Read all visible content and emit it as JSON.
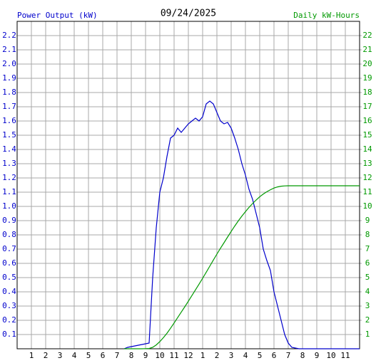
{
  "chart_data": {
    "type": "line",
    "title": "09/24/2025",
    "y_label": "Power Output (kW)",
    "y2_label": "Daily kW-Hours",
    "grid": true,
    "xlim": [
      0,
      24
    ],
    "xticks": [
      1,
      2,
      3,
      4,
      5,
      6,
      7,
      8,
      9,
      10,
      11,
      12,
      {
        "value": 13,
        "label": "1"
      },
      {
        "value": 14,
        "label": "2"
      },
      {
        "value": 15,
        "label": "3"
      },
      {
        "value": 16,
        "label": "4"
      },
      {
        "value": 17,
        "label": "5"
      },
      {
        "value": 18,
        "label": "6"
      },
      {
        "value": 19,
        "label": "7"
      },
      {
        "value": 20,
        "label": "8"
      },
      {
        "value": 21,
        "label": "9"
      },
      {
        "value": 22,
        "label": "10"
      },
      {
        "value": 23,
        "label": "11"
      }
    ],
    "ylim": [
      0,
      2.3
    ],
    "yticks": [
      0.1,
      0.2,
      0.3,
      0.4,
      0.5,
      0.6,
      0.7,
      0.8,
      0.9,
      {
        "value": 1,
        "label": "1.0"
      },
      1.1,
      1.2,
      1.3,
      1.4,
      1.5,
      1.6,
      1.7,
      1.8,
      1.9,
      {
        "value": 2,
        "label": "2.0"
      },
      2.1,
      2.2
    ],
    "y2lim": [
      0,
      23
    ],
    "y2ticks": [
      1,
      2,
      3,
      4,
      5,
      6,
      7,
      8,
      9,
      10,
      11,
      12,
      13,
      14,
      15,
      16,
      17,
      18,
      19,
      20,
      21,
      22
    ],
    "x": [
      7.5,
      7.75,
      8,
      8.25,
      8.5,
      8.75,
      9,
      9.25,
      9.5,
      9.75,
      10,
      10.25,
      10.5,
      10.75,
      11,
      11.25,
      11.5,
      11.75,
      12,
      12.25,
      12.5,
      12.75,
      13,
      13.25,
      13.5,
      13.75,
      14,
      14.25,
      14.5,
      14.75,
      15,
      15.25,
      15.5,
      15.75,
      16,
      16.25,
      16.5,
      16.75,
      17,
      17.25,
      17.5,
      17.75,
      18,
      18.25,
      18.5,
      18.75,
      19,
      19.25,
      19.5,
      19.75,
      20,
      21,
      22,
      23,
      24
    ],
    "series": [
      {
        "name": "Power Output (kW)",
        "color": "#0000cc",
        "values": [
          0,
          0.01,
          0.015,
          0.02,
          0.025,
          0.03,
          0.035,
          0.04,
          0.5,
          0.85,
          1.1,
          1.2,
          1.35,
          1.48,
          1.5,
          1.55,
          1.52,
          1.55,
          1.58,
          1.6,
          1.62,
          1.6,
          1.63,
          1.72,
          1.74,
          1.72,
          1.66,
          1.6,
          1.58,
          1.59,
          1.55,
          1.48,
          1.4,
          1.3,
          1.22,
          1.12,
          1.05,
          0.95,
          0.85,
          0.7,
          0.62,
          0.55,
          0.4,
          0.3,
          0.2,
          0.1,
          0.04,
          0.01,
          0.005,
          0,
          0,
          0,
          0,
          0,
          0
        ]
      },
      {
        "name": "Daily kW-Hours",
        "color": "#009900",
        "axis": "y2",
        "values": [
          0,
          0,
          0,
          0,
          0,
          0,
          0.01,
          0.02,
          0.1,
          0.27,
          0.5,
          0.78,
          1.09,
          1.44,
          1.81,
          2.19,
          2.57,
          2.95,
          3.34,
          3.74,
          4.14,
          4.54,
          4.95,
          5.37,
          5.8,
          6.23,
          6.65,
          7.06,
          7.45,
          7.85,
          8.24,
          8.62,
          8.98,
          9.32,
          9.63,
          9.93,
          10.2,
          10.45,
          10.68,
          10.87,
          11.03,
          11.17,
          11.29,
          11.37,
          11.42,
          11.44,
          11.45,
          11.45,
          11.45,
          11.45,
          11.45,
          11.45,
          11.45,
          11.45,
          11.45
        ]
      }
    ]
  }
}
